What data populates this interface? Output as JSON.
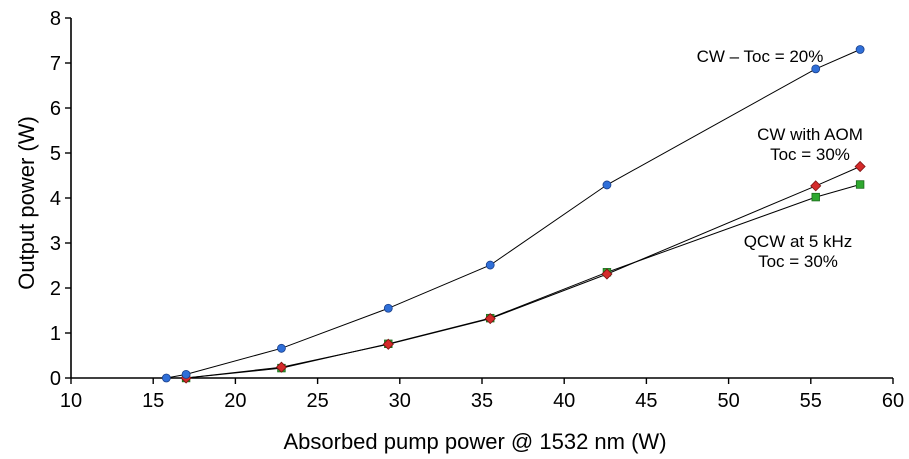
{
  "chart_data": {
    "type": "line",
    "xlabel": "Absorbed pump power @ 1532 nm (W)",
    "ylabel": "Output power (W)",
    "xlim": [
      10,
      60
    ],
    "ylim": [
      0,
      8
    ],
    "xticks": [
      10,
      15,
      20,
      25,
      30,
      35,
      40,
      45,
      50,
      55,
      60
    ],
    "yticks": [
      0,
      1,
      2,
      3,
      4,
      5,
      6,
      7,
      8
    ],
    "grid": false,
    "legend": "none",
    "series": [
      {
        "name": "CW – Toc = 20%",
        "marker": "circle",
        "color": "#2f6fd8",
        "x": [
          15.8,
          17.0,
          22.8,
          29.3,
          35.5,
          42.6,
          55.3,
          58.0
        ],
        "y": [
          0.0,
          0.08,
          0.66,
          1.55,
          2.51,
          4.29,
          6.87,
          7.3
        ]
      },
      {
        "name": "CW with AOM Toc = 30%",
        "marker": "diamond",
        "color": "#d42a2a",
        "x": [
          17.0,
          22.8,
          29.3,
          35.5,
          42.6,
          55.3,
          58.0
        ],
        "y": [
          0.0,
          0.24,
          0.75,
          1.32,
          2.31,
          4.27,
          4.7
        ]
      },
      {
        "name": "QCW at 5 kHz Toc = 30%",
        "marker": "square",
        "color": "#2fa82f",
        "x": [
          17.0,
          22.8,
          29.3,
          35.5,
          42.6,
          55.3,
          58.0
        ],
        "y": [
          0.0,
          0.22,
          0.76,
          1.33,
          2.35,
          4.02,
          4.3
        ]
      }
    ],
    "annotations": [
      {
        "lines": [
          "CW – Toc = 20%"
        ],
        "series": 0
      },
      {
        "lines": [
          "CW with AOM",
          "Toc = 30%"
        ],
        "series": 1
      },
      {
        "lines": [
          "QCW at 5 kHz",
          "Toc = 30%"
        ],
        "series": 2
      }
    ]
  }
}
